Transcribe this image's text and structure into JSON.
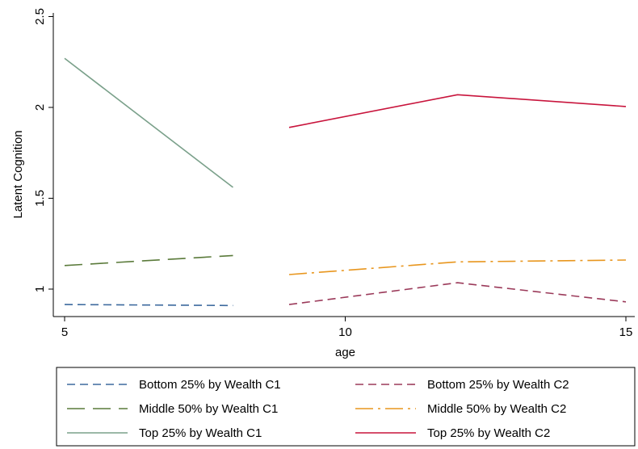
{
  "chart_data": {
    "type": "line",
    "title": "",
    "xlabel": "age",
    "ylabel": "Latent Cognition",
    "xlim": [
      5,
      15.2
    ],
    "ylim": [
      0.85,
      2.55
    ],
    "xticks": [
      5,
      10,
      15
    ],
    "yticks": [
      1,
      1.5,
      2,
      2.5
    ],
    "xtick_labels": [
      "5",
      "10",
      "15"
    ],
    "ytick_labels": [
      "1",
      "1.5",
      "2",
      "2.5"
    ],
    "grid": false,
    "legend_position": "bottom",
    "series": [
      {
        "name": "Bottom 25% by Wealth C1",
        "color": "#3d6a9e",
        "dash": "10,6",
        "points": [
          [
            5,
            0.915
          ],
          [
            8,
            0.91
          ]
        ]
      },
      {
        "name": "Bottom 25% by Wealth C2",
        "color": "#9b3a5a",
        "dash": "10,6",
        "points": [
          [
            9,
            0.915
          ],
          [
            12,
            1.035
          ],
          [
            15,
            0.93
          ]
        ]
      },
      {
        "name": "Middle 50% by Wealth C1",
        "color": "#5a7a3a",
        "dash": "22,10",
        "points": [
          [
            5,
            1.13
          ],
          [
            8,
            1.185
          ]
        ]
      },
      {
        "name": "Middle 50% by Wealth C2",
        "color": "#e8961e",
        "dash": "22,6,3,6",
        "points": [
          [
            9,
            1.08
          ],
          [
            12,
            1.15
          ],
          [
            15,
            1.16
          ]
        ]
      },
      {
        "name": "Top 25% by Wealth C1",
        "color": "#7aa08a",
        "dash": "",
        "points": [
          [
            5,
            2.27
          ],
          [
            8,
            1.56
          ]
        ]
      },
      {
        "name": "Top 25% by Wealth C2",
        "color": "#c8143c",
        "dash": "",
        "points": [
          [
            9,
            1.89
          ],
          [
            12,
            2.07
          ],
          [
            15,
            2.005
          ]
        ]
      }
    ]
  }
}
